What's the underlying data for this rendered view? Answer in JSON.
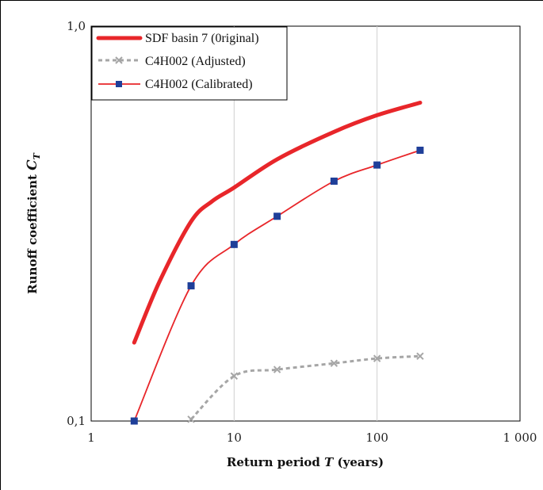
{
  "chart_data": {
    "type": "line",
    "x_scale": "log",
    "y_scale": "log",
    "xlim": [
      1,
      1000
    ],
    "ylim": [
      0.1,
      1.0
    ],
    "xlabel_prefix": "Return period ",
    "xlabel_symbol": "T",
    "xlabel_suffix": " (years)",
    "ylabel_prefix": "Runoff coefficient ",
    "ylabel_symbol": "C",
    "ylabel_sub": "T",
    "x_ticks": [
      {
        "value": 1,
        "label": "1"
      },
      {
        "value": 10,
        "label": "10"
      },
      {
        "value": 100,
        "label": "100"
      },
      {
        "value": 1000,
        "label": "1 000"
      }
    ],
    "y_ticks": [
      {
        "value": 0.1,
        "label": "0,1"
      },
      {
        "value": 1.0,
        "label": "1,0"
      }
    ],
    "grid": "vertical-major",
    "legend_position": "top-left",
    "series": [
      {
        "name": "SDF basin 7 (0riginal)",
        "color": "#e8262a",
        "style": "thick-solid",
        "marker": "none",
        "x": [
          2,
          3,
          5,
          7,
          10,
          20,
          50,
          100,
          200
        ],
        "y": [
          0.158,
          0.225,
          0.32,
          0.36,
          0.39,
          0.46,
          0.54,
          0.595,
          0.64
        ]
      },
      {
        "name": "C4H002 (Adjusted)",
        "color": "#a6a6a6",
        "style": "dashed",
        "marker": "x",
        "x": [
          5,
          10,
          20,
          50,
          100,
          200
        ],
        "y": [
          0.101,
          0.13,
          0.135,
          0.14,
          0.144,
          0.146
        ]
      },
      {
        "name": "C4H002 (Calibrated)",
        "color": "#e8262a",
        "style": "solid",
        "marker": "square",
        "marker_color": "#1f3f99",
        "x": [
          2,
          5,
          10,
          20,
          50,
          100,
          200
        ],
        "y": [
          0.1,
          0.22,
          0.28,
          0.33,
          0.405,
          0.445,
          0.485
        ]
      }
    ]
  }
}
